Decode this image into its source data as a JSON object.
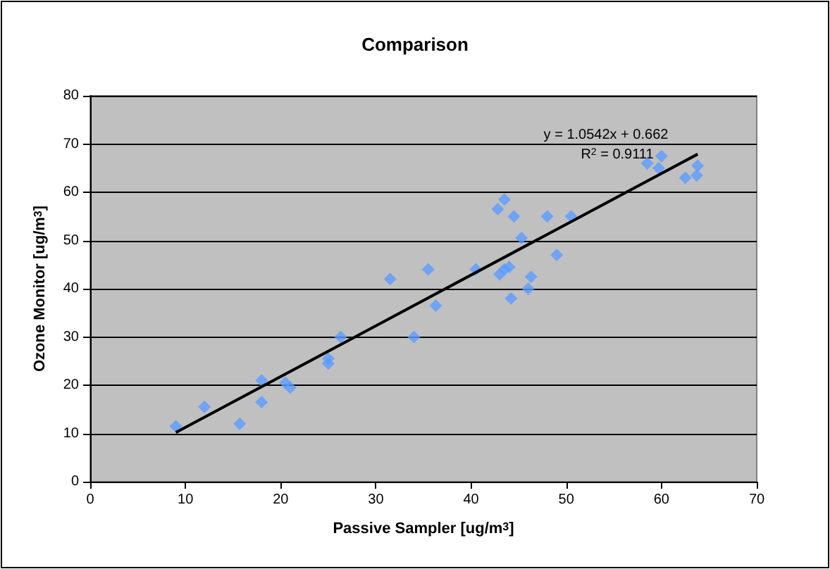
{
  "chart_data": {
    "type": "scatter",
    "title": "Comparison",
    "xlabel": "Passive Sampler [ug/m$^{3}$]",
    "ylabel": "Ozone Monitor [ug/m$^{3}$]",
    "xlim": [
      0,
      70
    ],
    "xticks": [
      0,
      10,
      20,
      30,
      40,
      50,
      60,
      70
    ],
    "ylim": [
      0,
      80
    ],
    "yticks": [
      0,
      10,
      20,
      30,
      40,
      50,
      60,
      70,
      80
    ],
    "grid": "y",
    "marker": "diamond",
    "series": [
      {
        "color": "#5b9bff",
        "x": [
          9,
          12,
          15.7,
          18,
          18,
          20.5,
          21,
          25,
          25,
          26.3,
          31.5,
          34,
          35.5,
          36.3,
          40.5,
          42.8,
          43.5,
          44.5,
          45.3,
          43,
          43.5,
          44,
          44.2,
          46,
          46.3,
          48,
          49,
          50.5,
          58.5,
          59.7,
          60,
          62.5,
          63.8,
          63.7
        ],
        "values": [
          11.5,
          15.5,
          12,
          16.5,
          21,
          20.5,
          19.5,
          25.5,
          24.5,
          30,
          42,
          30,
          44,
          36.5,
          44,
          56.5,
          58.5,
          55,
          50.5,
          43,
          44,
          44.5,
          38,
          40,
          42.5,
          55,
          47,
          55,
          66,
          65,
          67.5,
          63,
          65.5,
          63.5
        ]
      },
      {
        "type": "line",
        "color": "#000000",
        "marker": "none",
        "x": [
          9,
          63.8
        ],
        "values": [
          10.2,
          67.9
        ]
      }
    ],
    "annotations": [
      "y = 1.0542x + 0.662",
      "R$^{2}$ = 0.9111"
    ]
  }
}
